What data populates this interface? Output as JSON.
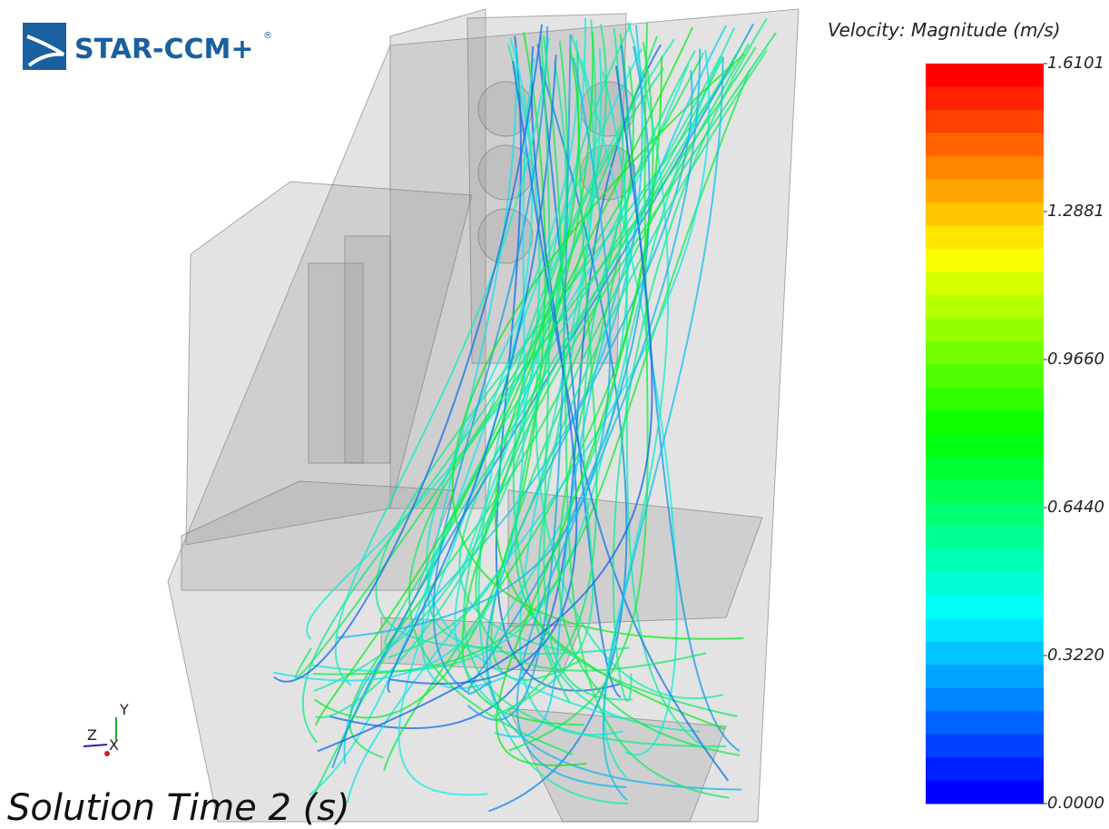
{
  "logo": {
    "text": "STAR-CCM+",
    "mark": "®"
  },
  "colorbar": {
    "title": "Velocity: Magnitude (m/s)",
    "ticks": [
      {
        "value": 1.6101,
        "label": "1.6101"
      },
      {
        "value": 1.2881,
        "label": "1.2881"
      },
      {
        "value": 0.966,
        "label": "0.9660"
      },
      {
        "value": 0.644,
        "label": "0.6440"
      },
      {
        "value": 0.322,
        "label": "0.3220"
      },
      {
        "value": 0,
        "label": "0.0000"
      }
    ]
  },
  "triad": {
    "y": "Y",
    "z": "Z",
    "x": "X"
  },
  "solution_time": "Solution Time 2 (s)"
}
